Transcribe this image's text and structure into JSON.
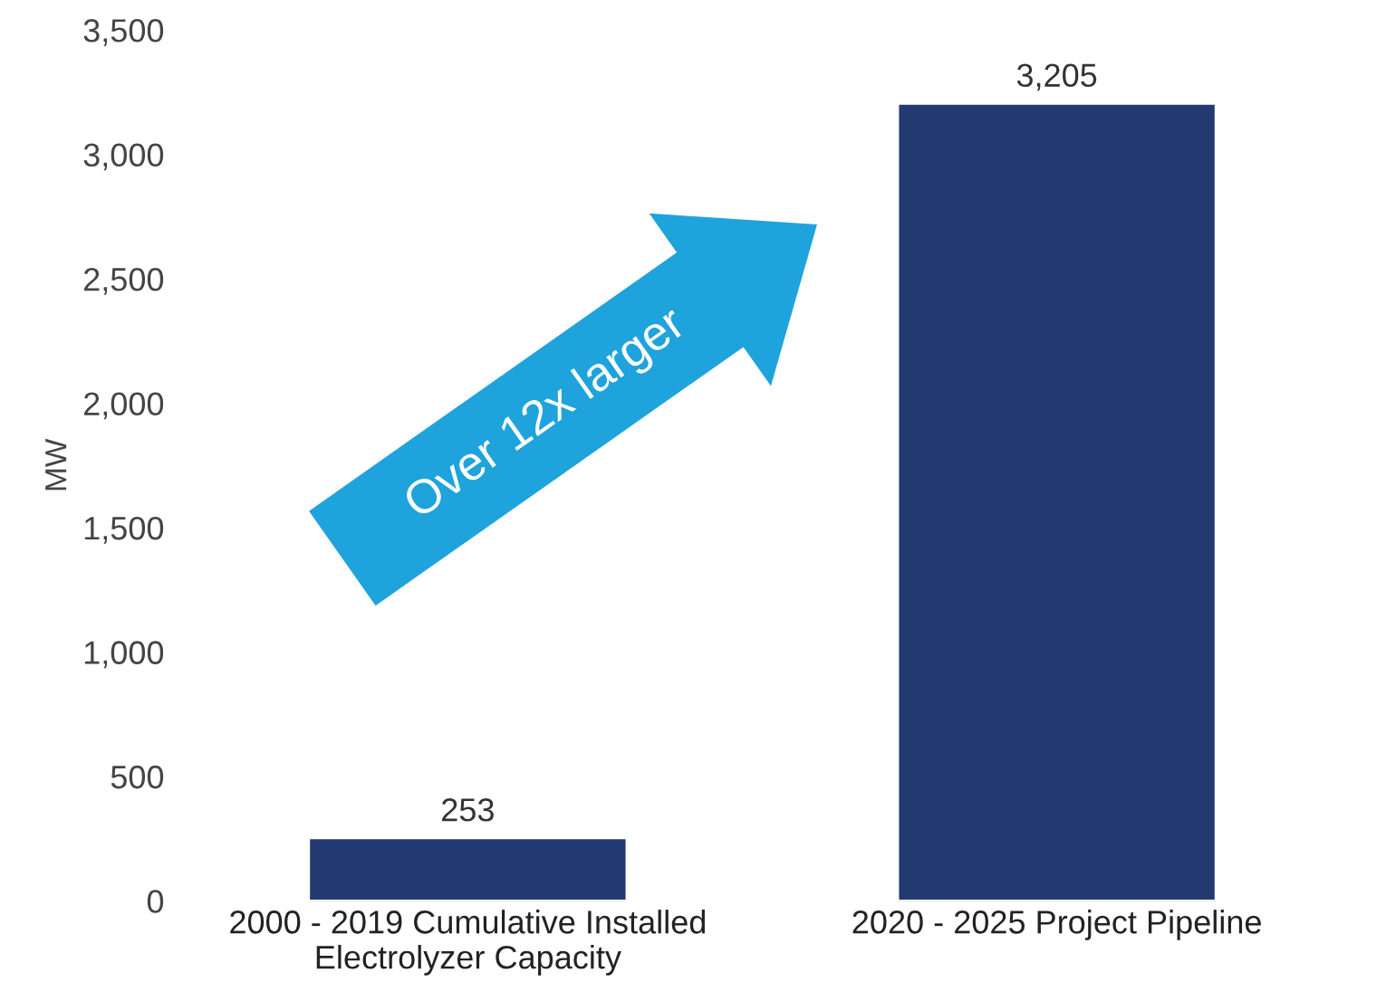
{
  "chart_data": {
    "type": "bar",
    "categories": [
      "2000 - 2019 Cumulative Installed\nElectrolyzer Capacity",
      "2020 - 2025 Project Pipeline"
    ],
    "values": [
      253,
      3205
    ],
    "color": "#223a70",
    "ylabel": "MW",
    "ylim": [
      0,
      3500
    ],
    "yticks": [
      {
        "value": 0,
        "label": "0"
      },
      {
        "value": 500,
        "label": "500"
      },
      {
        "value": 1000,
        "label": "1,000"
      },
      {
        "value": 1500,
        "label": "1,500"
      },
      {
        "value": 2000,
        "label": "2,000"
      },
      {
        "value": 2500,
        "label": "2,500"
      },
      {
        "value": 3000,
        "label": "3,000"
      },
      {
        "value": 3500,
        "label": "3,500"
      }
    ],
    "value_labels": [
      "253",
      "3,205"
    ],
    "annotations": [
      "Over 12x larger"
    ],
    "grid": false,
    "legend": false
  }
}
